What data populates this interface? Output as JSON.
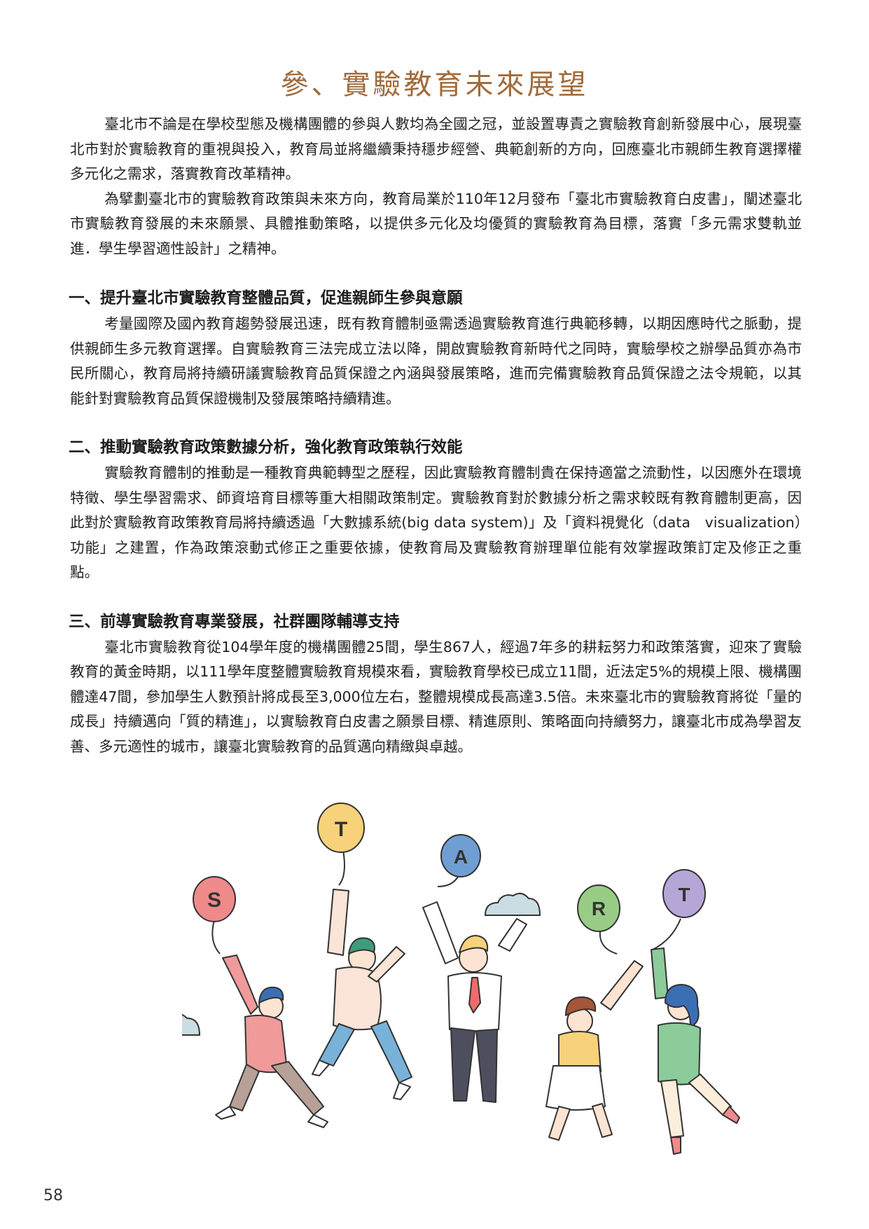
{
  "page": {
    "title": "參、實驗教育未來展望",
    "page_number": "58"
  },
  "intro": [
    "臺北市不論是在學校型態及機構團體的參與人數均為全國之冠，並設置專責之實驗教育創新發展中心，展現臺北市對於實驗教育的重視與投入，教育局並將繼續秉持穩步經營、典範創新的方向，回應臺北市親師生教育選擇權多元化之需求，落實教育改革精神。",
    "為擘劃臺北市的實驗教育政策與未來方向，教育局業於110年12月發布「臺北市實驗教育白皮書」，闡述臺北市實驗教育發展的未來願景、具體推動策略，以提供多元化及均優質的實驗教育為目標，落實「多元需求雙軌並進．學生學習適性設計」之精神。"
  ],
  "sections": [
    {
      "heading": "一、提升臺北市實驗教育整體品質，促進親師生參與意願",
      "body": "考量國際及國內教育趨勢發展迅速，既有教育體制亟需透過實驗教育進行典範移轉，以期因應時代之脈動，提供親師生多元教育選擇。自實驗教育三法完成立法以降，開啟實驗教育新時代之同時，實驗學校之辦學品質亦為市民所關心，教育局將持續研議實驗教育品質保證之內涵與發展策略，進而完備實驗教育品質保證之法令規範，以其能針對實驗教育品質保證機制及發展策略持續精進。"
    },
    {
      "heading": "二、推動實驗教育政策數據分析，強化教育政策執行效能",
      "body": "實驗教育體制的推動是一種教育典範轉型之歷程，因此實驗教育體制貴在保持適當之流動性，以因應外在環境特徵、學生學習需求、師資培育目標等重大相關政策制定。實驗教育對於數據分析之需求較既有教育體制更高，因此對於實驗教育政策教育局將持續透過「大數據系統(big data system)」及「資料視覺化（data　visualization）功能」之建置，作為政策滾動式修正之重要依據，使教育局及實驗教育辦理單位能有效掌握政策訂定及修正之重點。"
    },
    {
      "heading": "三、前導實驗教育專業發展，社群團隊輔導支持",
      "body": "臺北市實驗教育從104學年度的機構團體25間，學生867人，經過7年多的耕耘努力和政策落實，迎來了實驗教育的黃金時期，以111學年度整體實驗教育規模來看，實驗教育學校已成立11間，近法定5%的規模上限、機構團體達47間，參加學生人數預計將成長至3,000位左右，整體規模成長高達3.5倍。未來臺北市的實驗教育將從「量的成長」持續邁向「質的精進」，以實驗教育白皮書之願景目標、精進原則、策略面向持續努力，讓臺北市成為學習友善、多元適性的城市，讓臺北實驗教育的品質邁向精緻與卓越。"
    }
  ],
  "illustration": {
    "balloon_letters": [
      "S",
      "T",
      "A",
      "R",
      "T"
    ],
    "colors": {
      "title": "#a26b3b",
      "balloon_s": "#ef8a8a",
      "balloon_t1": "#f7d27a",
      "balloon_a": "#6f9ed3",
      "balloon_r": "#98cc86",
      "balloon_t2": "#b6a6d8",
      "cloud": "#c9dde2"
    }
  }
}
